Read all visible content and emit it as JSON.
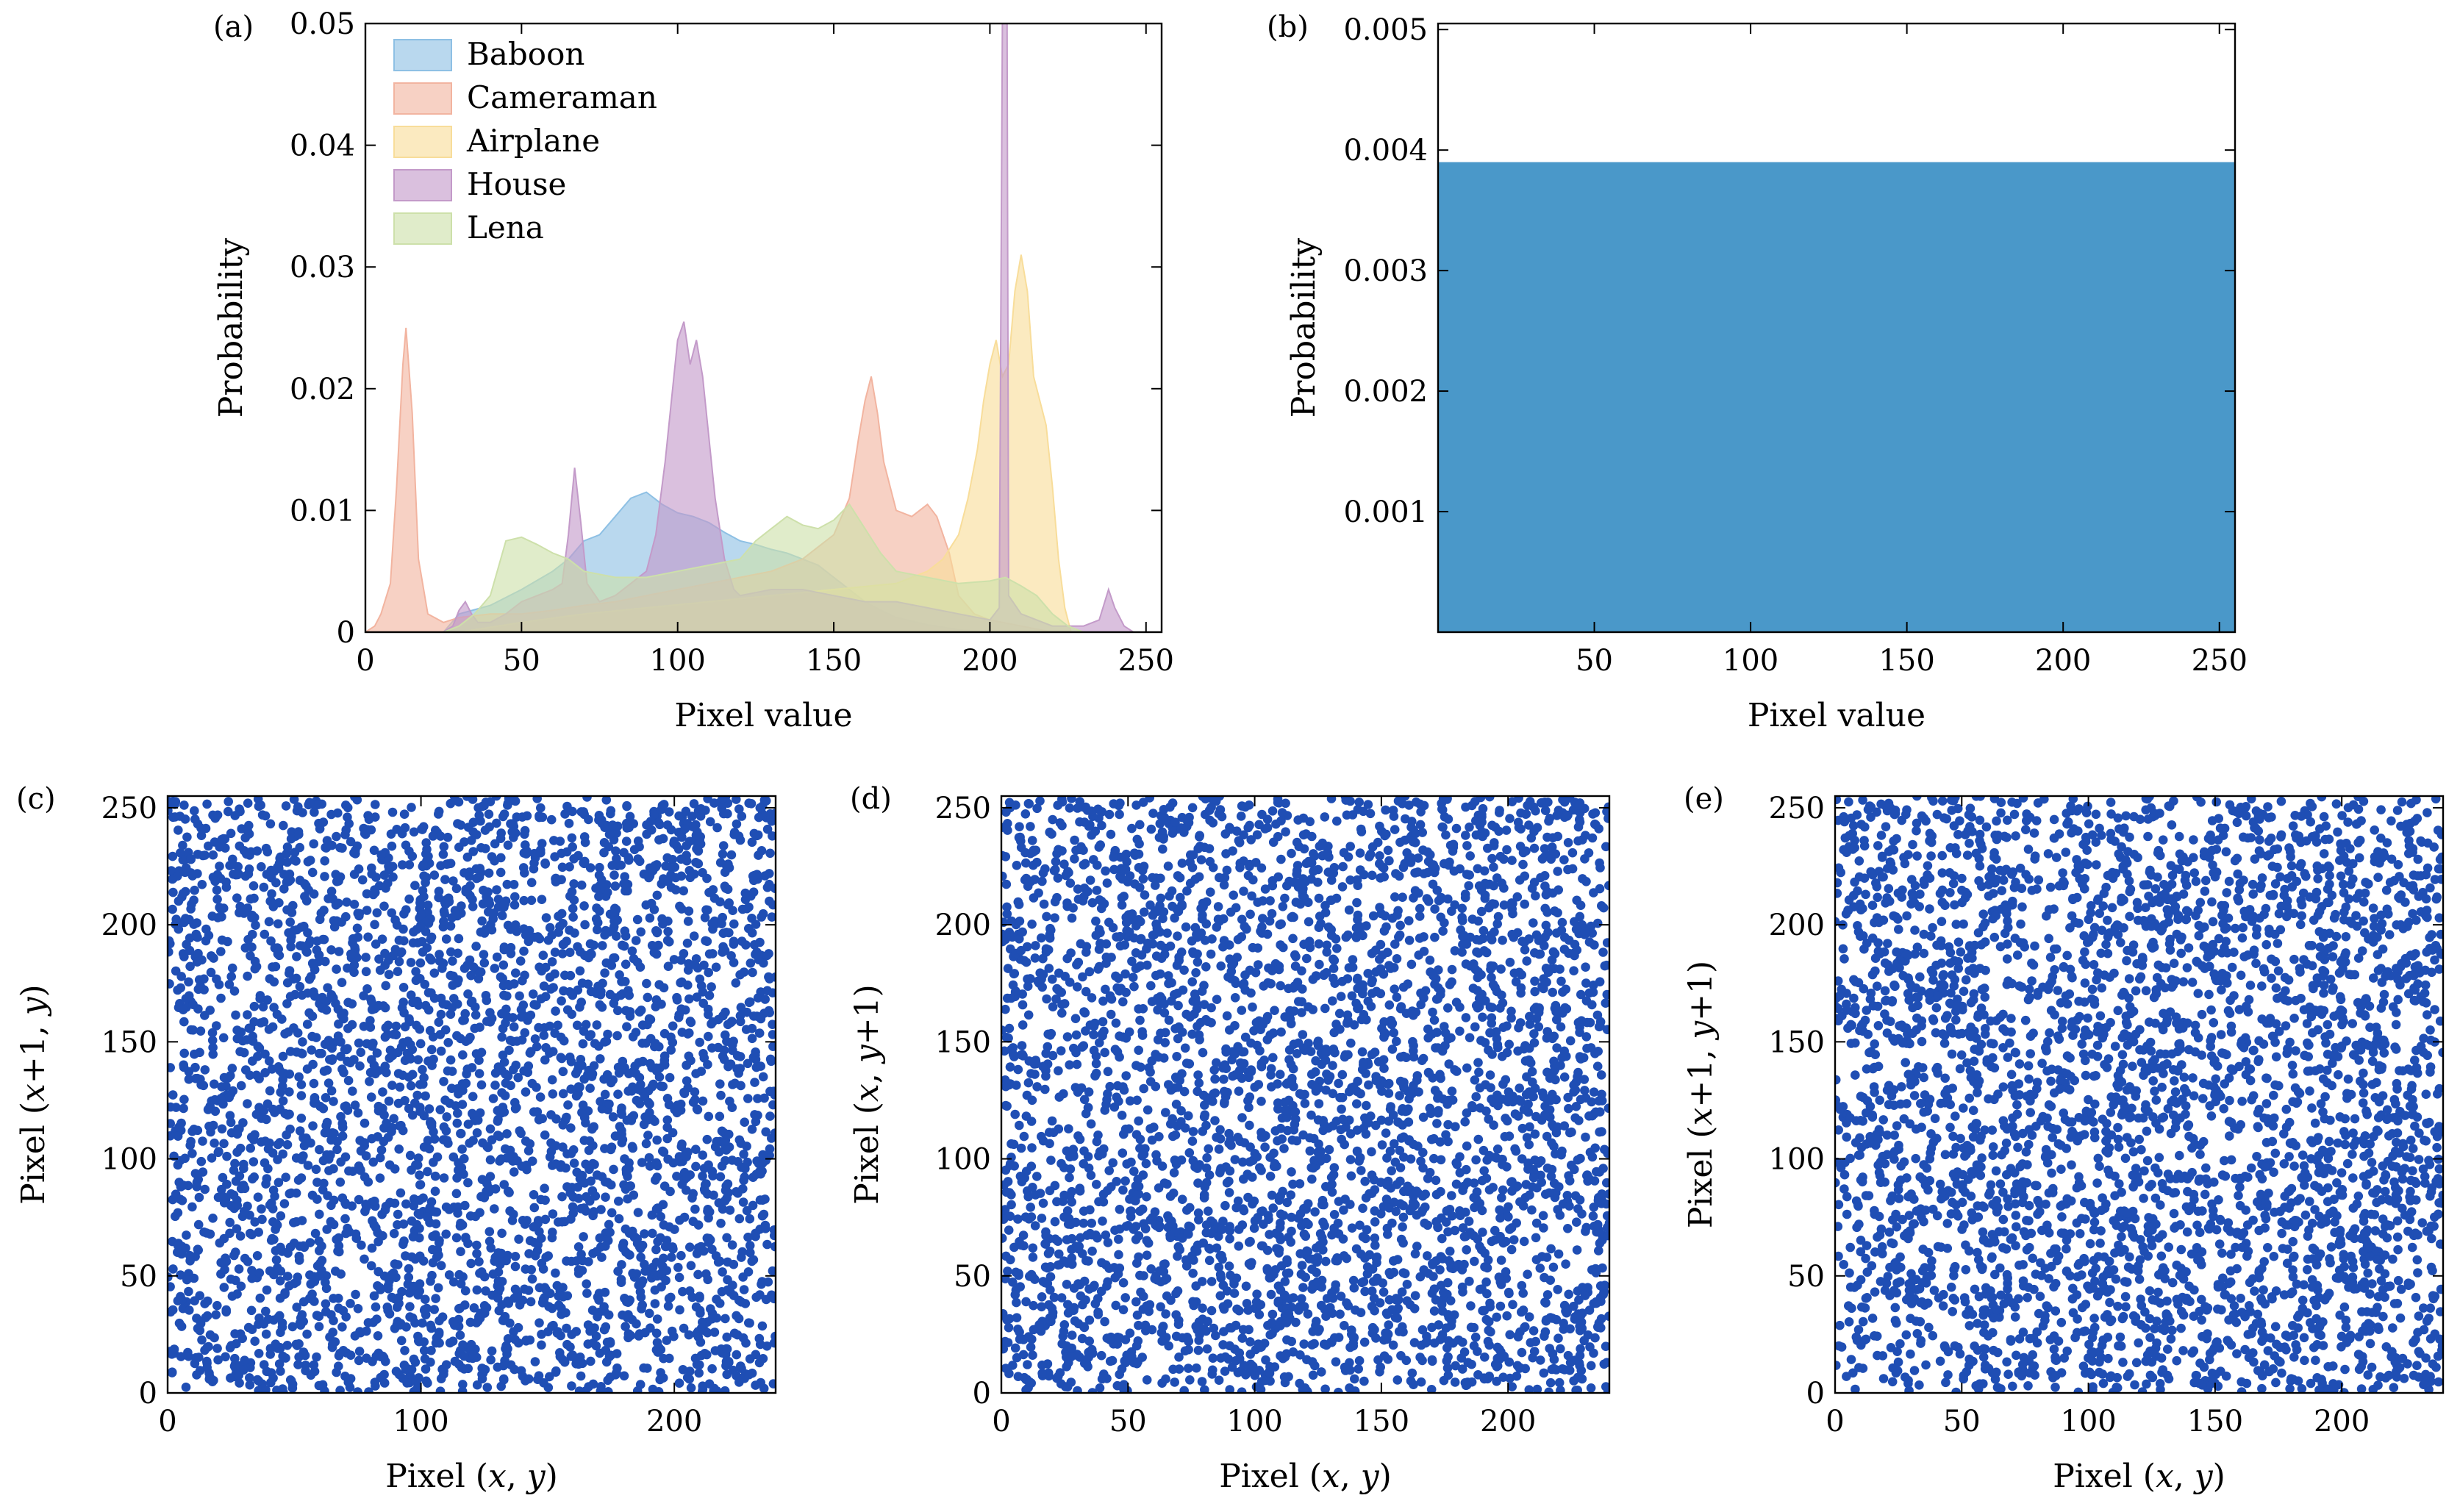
{
  "chart_data": [
    {
      "panel": "(a)",
      "type": "area",
      "xlabel": "Pixel value",
      "ylabel": "Probability",
      "xlim": [
        0,
        255
      ],
      "ylim": [
        0,
        0.05
      ],
      "xticks": [
        0,
        50,
        100,
        150,
        200,
        250
      ],
      "yticks": [
        0,
        0.01,
        0.02,
        0.03,
        0.04,
        0.05
      ],
      "ytick_labels": [
        "0",
        "0.01",
        "0.02",
        "0.03",
        "0.04",
        "0.05"
      ],
      "legend_position": "upper-left",
      "series": [
        {
          "name": "Baboon",
          "color": "#8ec0e4",
          "points": [
            [
              25,
              0
            ],
            [
              30,
              0.0015
            ],
            [
              40,
              0.0022
            ],
            [
              50,
              0.0035
            ],
            [
              60,
              0.005
            ],
            [
              65,
              0.006
            ],
            [
              70,
              0.0075
            ],
            [
              75,
              0.008
            ],
            [
              80,
              0.0095
            ],
            [
              85,
              0.011
            ],
            [
              90,
              0.0115
            ],
            [
              95,
              0.0105
            ],
            [
              100,
              0.0098
            ],
            [
              105,
              0.0095
            ],
            [
              110,
              0.009
            ],
            [
              115,
              0.0082
            ],
            [
              120,
              0.0075
            ],
            [
              125,
              0.0072
            ],
            [
              130,
              0.0068
            ],
            [
              135,
              0.0065
            ],
            [
              140,
              0.006
            ],
            [
              145,
              0.0055
            ],
            [
              150,
              0.0045
            ],
            [
              155,
              0.0035
            ],
            [
              160,
              0.0025
            ],
            [
              165,
              0.0018
            ],
            [
              170,
              0.0012
            ],
            [
              180,
              0.0006
            ],
            [
              190,
              0.0002
            ],
            [
              200,
              0
            ]
          ]
        },
        {
          "name": "Cameraman",
          "color": "#f2b4a0",
          "points": [
            [
              0,
              0
            ],
            [
              3,
              0.0005
            ],
            [
              5,
              0.0015
            ],
            [
              8,
              0.004
            ],
            [
              10,
              0.012
            ],
            [
              12,
              0.022
            ],
            [
              13,
              0.025
            ],
            [
              15,
              0.018
            ],
            [
              17,
              0.006
            ],
            [
              20,
              0.0015
            ],
            [
              25,
              0.0008
            ],
            [
              30,
              0.0012
            ],
            [
              40,
              0.0015
            ],
            [
              50,
              0.0015
            ],
            [
              60,
              0.0018
            ],
            [
              70,
              0.0022
            ],
            [
              80,
              0.0025
            ],
            [
              90,
              0.003
            ],
            [
              100,
              0.0035
            ],
            [
              110,
              0.004
            ],
            [
              120,
              0.0045
            ],
            [
              130,
              0.005
            ],
            [
              140,
              0.006
            ],
            [
              150,
              0.008
            ],
            [
              155,
              0.011
            ],
            [
              158,
              0.016
            ],
            [
              160,
              0.019
            ],
            [
              162,
              0.021
            ],
            [
              164,
              0.018
            ],
            [
              166,
              0.014
            ],
            [
              170,
              0.01
            ],
            [
              175,
              0.0095
            ],
            [
              180,
              0.0105
            ],
            [
              183,
              0.0095
            ],
            [
              187,
              0.0065
            ],
            [
              190,
              0.003
            ],
            [
              195,
              0.0015
            ],
            [
              200,
              0.001
            ],
            [
              210,
              0.0005
            ],
            [
              220,
              0
            ]
          ]
        },
        {
          "name": "Airplane",
          "color": "#f8dd9a",
          "points": [
            [
              0,
              0
            ],
            [
              30,
              0
            ],
            [
              50,
              0.0008
            ],
            [
              70,
              0.0015
            ],
            [
              90,
              0.002
            ],
            [
              110,
              0.0025
            ],
            [
              130,
              0.003
            ],
            [
              150,
              0.0035
            ],
            [
              170,
              0.004
            ],
            [
              180,
              0.005
            ],
            [
              185,
              0.006
            ],
            [
              190,
              0.008
            ],
            [
              193,
              0.011
            ],
            [
              196,
              0.015
            ],
            [
              198,
              0.019
            ],
            [
              200,
              0.022
            ],
            [
              202,
              0.024
            ],
            [
              204,
              0.021
            ],
            [
              206,
              0.022
            ],
            [
              208,
              0.028
            ],
            [
              210,
              0.031
            ],
            [
              212,
              0.028
            ],
            [
              214,
              0.021
            ],
            [
              216,
              0.019
            ],
            [
              218,
              0.017
            ],
            [
              220,
              0.012
            ],
            [
              222,
              0.006
            ],
            [
              224,
              0.002
            ],
            [
              226,
              0
            ]
          ]
        },
        {
          "name": "House",
          "color": "#c39ac9",
          "points": [
            [
              0,
              0
            ],
            [
              25,
              0
            ],
            [
              28,
              0.0005
            ],
            [
              30,
              0.0018
            ],
            [
              32,
              0.0025
            ],
            [
              34,
              0.0015
            ],
            [
              36,
              0.0008
            ],
            [
              40,
              0.0008
            ],
            [
              45,
              0.0015
            ],
            [
              50,
              0.0025
            ],
            [
              55,
              0.003
            ],
            [
              60,
              0.0035
            ],
            [
              63,
              0.004
            ],
            [
              65,
              0.008
            ],
            [
              67,
              0.0135
            ],
            [
              69,
              0.009
            ],
            [
              71,
              0.004
            ],
            [
              75,
              0.0025
            ],
            [
              80,
              0.003
            ],
            [
              85,
              0.004
            ],
            [
              90,
              0.005
            ],
            [
              93,
              0.008
            ],
            [
              96,
              0.014
            ],
            [
              98,
              0.019
            ],
            [
              100,
              0.024
            ],
            [
              102,
              0.0255
            ],
            [
              104,
              0.022
            ],
            [
              106,
              0.024
            ],
            [
              108,
              0.021
            ],
            [
              110,
              0.016
            ],
            [
              112,
              0.011
            ],
            [
              115,
              0.006
            ],
            [
              118,
              0.0035
            ],
            [
              120,
              0.003
            ],
            [
              130,
              0.0035
            ],
            [
              140,
              0.0035
            ],
            [
              150,
              0.003
            ],
            [
              160,
              0.0025
            ],
            [
              170,
              0.0025
            ],
            [
              180,
              0.002
            ],
            [
              190,
              0.0015
            ],
            [
              200,
              0.001
            ],
            [
              203,
              0.002
            ],
            [
              204,
              0.05
            ],
            [
              205.5,
              0.05
            ],
            [
              206,
              0.003
            ],
            [
              210,
              0.0015
            ],
            [
              220,
              0.0005
            ],
            [
              230,
              0.0005
            ],
            [
              235,
              0.001
            ],
            [
              238,
              0.0035
            ],
            [
              240,
              0.002
            ],
            [
              243,
              0.0005
            ],
            [
              246,
              0
            ]
          ]
        },
        {
          "name": "Lena",
          "color": "#cde0aa",
          "points": [
            [
              0,
              0
            ],
            [
              25,
              0
            ],
            [
              30,
              0.0005
            ],
            [
              35,
              0.0015
            ],
            [
              40,
              0.003
            ],
            [
              45,
              0.0075
            ],
            [
              50,
              0.0078
            ],
            [
              55,
              0.0072
            ],
            [
              60,
              0.0065
            ],
            [
              65,
              0.006
            ],
            [
              70,
              0.005
            ],
            [
              80,
              0.0045
            ],
            [
              90,
              0.0045
            ],
            [
              100,
              0.005
            ],
            [
              110,
              0.0055
            ],
            [
              120,
              0.006
            ],
            [
              125,
              0.0075
            ],
            [
              130,
              0.0085
            ],
            [
              135,
              0.0095
            ],
            [
              140,
              0.0088
            ],
            [
              145,
              0.0085
            ],
            [
              150,
              0.0092
            ],
            [
              155,
              0.0105
            ],
            [
              160,
              0.0085
            ],
            [
              165,
              0.0065
            ],
            [
              170,
              0.005
            ],
            [
              180,
              0.0045
            ],
            [
              190,
              0.004
            ],
            [
              200,
              0.0042
            ],
            [
              205,
              0.0045
            ],
            [
              210,
              0.0038
            ],
            [
              215,
              0.003
            ],
            [
              220,
              0.0015
            ],
            [
              225,
              0.0005
            ],
            [
              230,
              0
            ]
          ]
        }
      ]
    },
    {
      "panel": "(b)",
      "type": "bar",
      "xlabel": "Pixel value",
      "ylabel": "Probability",
      "xlim": [
        0,
        255
      ],
      "ylim": [
        0,
        0.00505
      ],
      "xticks": [
        50,
        100,
        150,
        200,
        250
      ],
      "yticks": [
        0.001,
        0.002,
        0.003,
        0.004,
        0.005
      ],
      "ytick_labels": [
        "0.001",
        "0.002",
        "0.003",
        "0.004",
        "0.005"
      ],
      "color": "#4a98c9",
      "values": [
        {
          "x_range": [
            0,
            255
          ],
          "y": 0.0039
        }
      ]
    },
    {
      "panel": "(c)",
      "type": "scatter",
      "xlabel": "Pixel (x, y)",
      "xlabel_parts": [
        {
          "t": "Pixel (",
          "i": false
        },
        {
          "t": "x",
          "i": true
        },
        {
          "t": ", ",
          "i": false
        },
        {
          "t": "y",
          "i": true
        },
        {
          "t": ")",
          "i": false
        }
      ],
      "ylabel": "Pixel (x+1, y)",
      "ylabel_parts": [
        {
          "t": "Pixel (",
          "i": false
        },
        {
          "t": "x",
          "i": true
        },
        {
          "t": "+1, ",
          "i": false
        },
        {
          "t": "y",
          "i": true
        },
        {
          "t": ")",
          "i": false
        }
      ],
      "xlim": [
        0,
        240
      ],
      "ylim": [
        0,
        255
      ],
      "xticks": [
        0,
        100,
        200
      ],
      "yticks": [
        0,
        50,
        100,
        150,
        200,
        250
      ],
      "color": "#1f4eb4",
      "point_count": 3500,
      "distribution": "uniform random over [0,240] x [0,255]"
    },
    {
      "panel": "(d)",
      "type": "scatter",
      "xlabel": "Pixel (x, y)",
      "xlabel_parts": [
        {
          "t": "Pixel (",
          "i": false
        },
        {
          "t": "x",
          "i": true
        },
        {
          "t": ", ",
          "i": false
        },
        {
          "t": "y",
          "i": true
        },
        {
          "t": ")",
          "i": false
        }
      ],
      "ylabel": "Pixel (x, y+1)",
      "ylabel_parts": [
        {
          "t": "Pixel (",
          "i": false
        },
        {
          "t": "x",
          "i": true
        },
        {
          "t": ", ",
          "i": false
        },
        {
          "t": "y",
          "i": true
        },
        {
          "t": "+1)",
          "i": false
        }
      ],
      "xlim": [
        0,
        240
      ],
      "ylim": [
        0,
        255
      ],
      "xticks": [
        0,
        50,
        100,
        150,
        200
      ],
      "yticks": [
        0,
        50,
        100,
        150,
        200,
        250
      ],
      "color": "#1f4eb4",
      "point_count": 3500,
      "distribution": "uniform random over [0,240] x [0,255]"
    },
    {
      "panel": "(e)",
      "type": "scatter",
      "xlabel": "Pixel (x, y)",
      "xlabel_parts": [
        {
          "t": "Pixel (",
          "i": false
        },
        {
          "t": "x",
          "i": true
        },
        {
          "t": ", ",
          "i": false
        },
        {
          "t": "y",
          "i": true
        },
        {
          "t": ")",
          "i": false
        }
      ],
      "ylabel": "Pixel (x+1, y+1)",
      "ylabel_parts": [
        {
          "t": "Pixel (",
          "i": false
        },
        {
          "t": "x",
          "i": true
        },
        {
          "t": "+1, ",
          "i": false
        },
        {
          "t": "y",
          "i": true
        },
        {
          "t": "+1)",
          "i": false
        }
      ],
      "xlim": [
        0,
        240
      ],
      "ylim": [
        0,
        255
      ],
      "xticks": [
        0,
        50,
        100,
        150,
        200
      ],
      "yticks": [
        0,
        50,
        100,
        150,
        200,
        250
      ],
      "color": "#1f4eb4",
      "point_count": 3500,
      "distribution": "uniform random over [0,240] x [0,255]"
    }
  ]
}
